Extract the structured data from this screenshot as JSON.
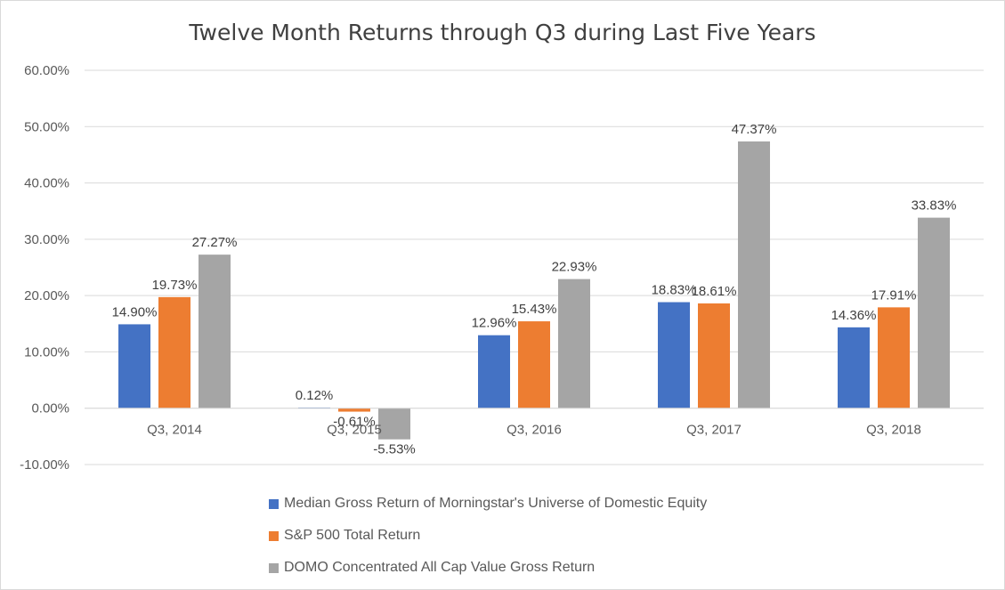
{
  "chart_data": {
    "type": "bar",
    "title": "Twelve Month Returns through Q3 during Last Five Years",
    "categories": [
      "Q3, 2014",
      "Q3, 2015",
      "Q3, 2016",
      "Q3, 2017",
      "Q3, 2018"
    ],
    "ylim": [
      -10,
      60
    ],
    "yticks": [
      60,
      50,
      40,
      30,
      20,
      10,
      0,
      -10
    ],
    "ytick_labels": [
      "60.00%",
      "50.00%",
      "40.00%",
      "30.00%",
      "20.00%",
      "10.00%",
      "0.00%",
      "-10.00%"
    ],
    "grid": true,
    "legend_position": "bottom",
    "series": [
      {
        "name": "Median Gross Return of Morningstar's Universe of Domestic Equity",
        "color": "#4472c4",
        "values": [
          14.9,
          0.12,
          12.96,
          18.83,
          14.36
        ],
        "labels": [
          "14.90%",
          "0.12%",
          "12.96%",
          "18.83%",
          "14.36%"
        ]
      },
      {
        "name": "S&P 500 Total Return",
        "color": "#ed7d31",
        "values": [
          19.73,
          -0.61,
          15.43,
          18.61,
          17.91
        ],
        "labels": [
          "19.73%",
          "-0.61%",
          "15.43%",
          "18.61%",
          "17.91%"
        ]
      },
      {
        "name": "DOMO Concentrated All Cap Value Gross Return",
        "color": "#a5a5a5",
        "values": [
          27.27,
          -5.53,
          22.93,
          47.37,
          33.83
        ],
        "labels": [
          "27.27%",
          "-5.53%",
          "22.93%",
          "47.37%",
          "33.83%"
        ]
      }
    ]
  }
}
